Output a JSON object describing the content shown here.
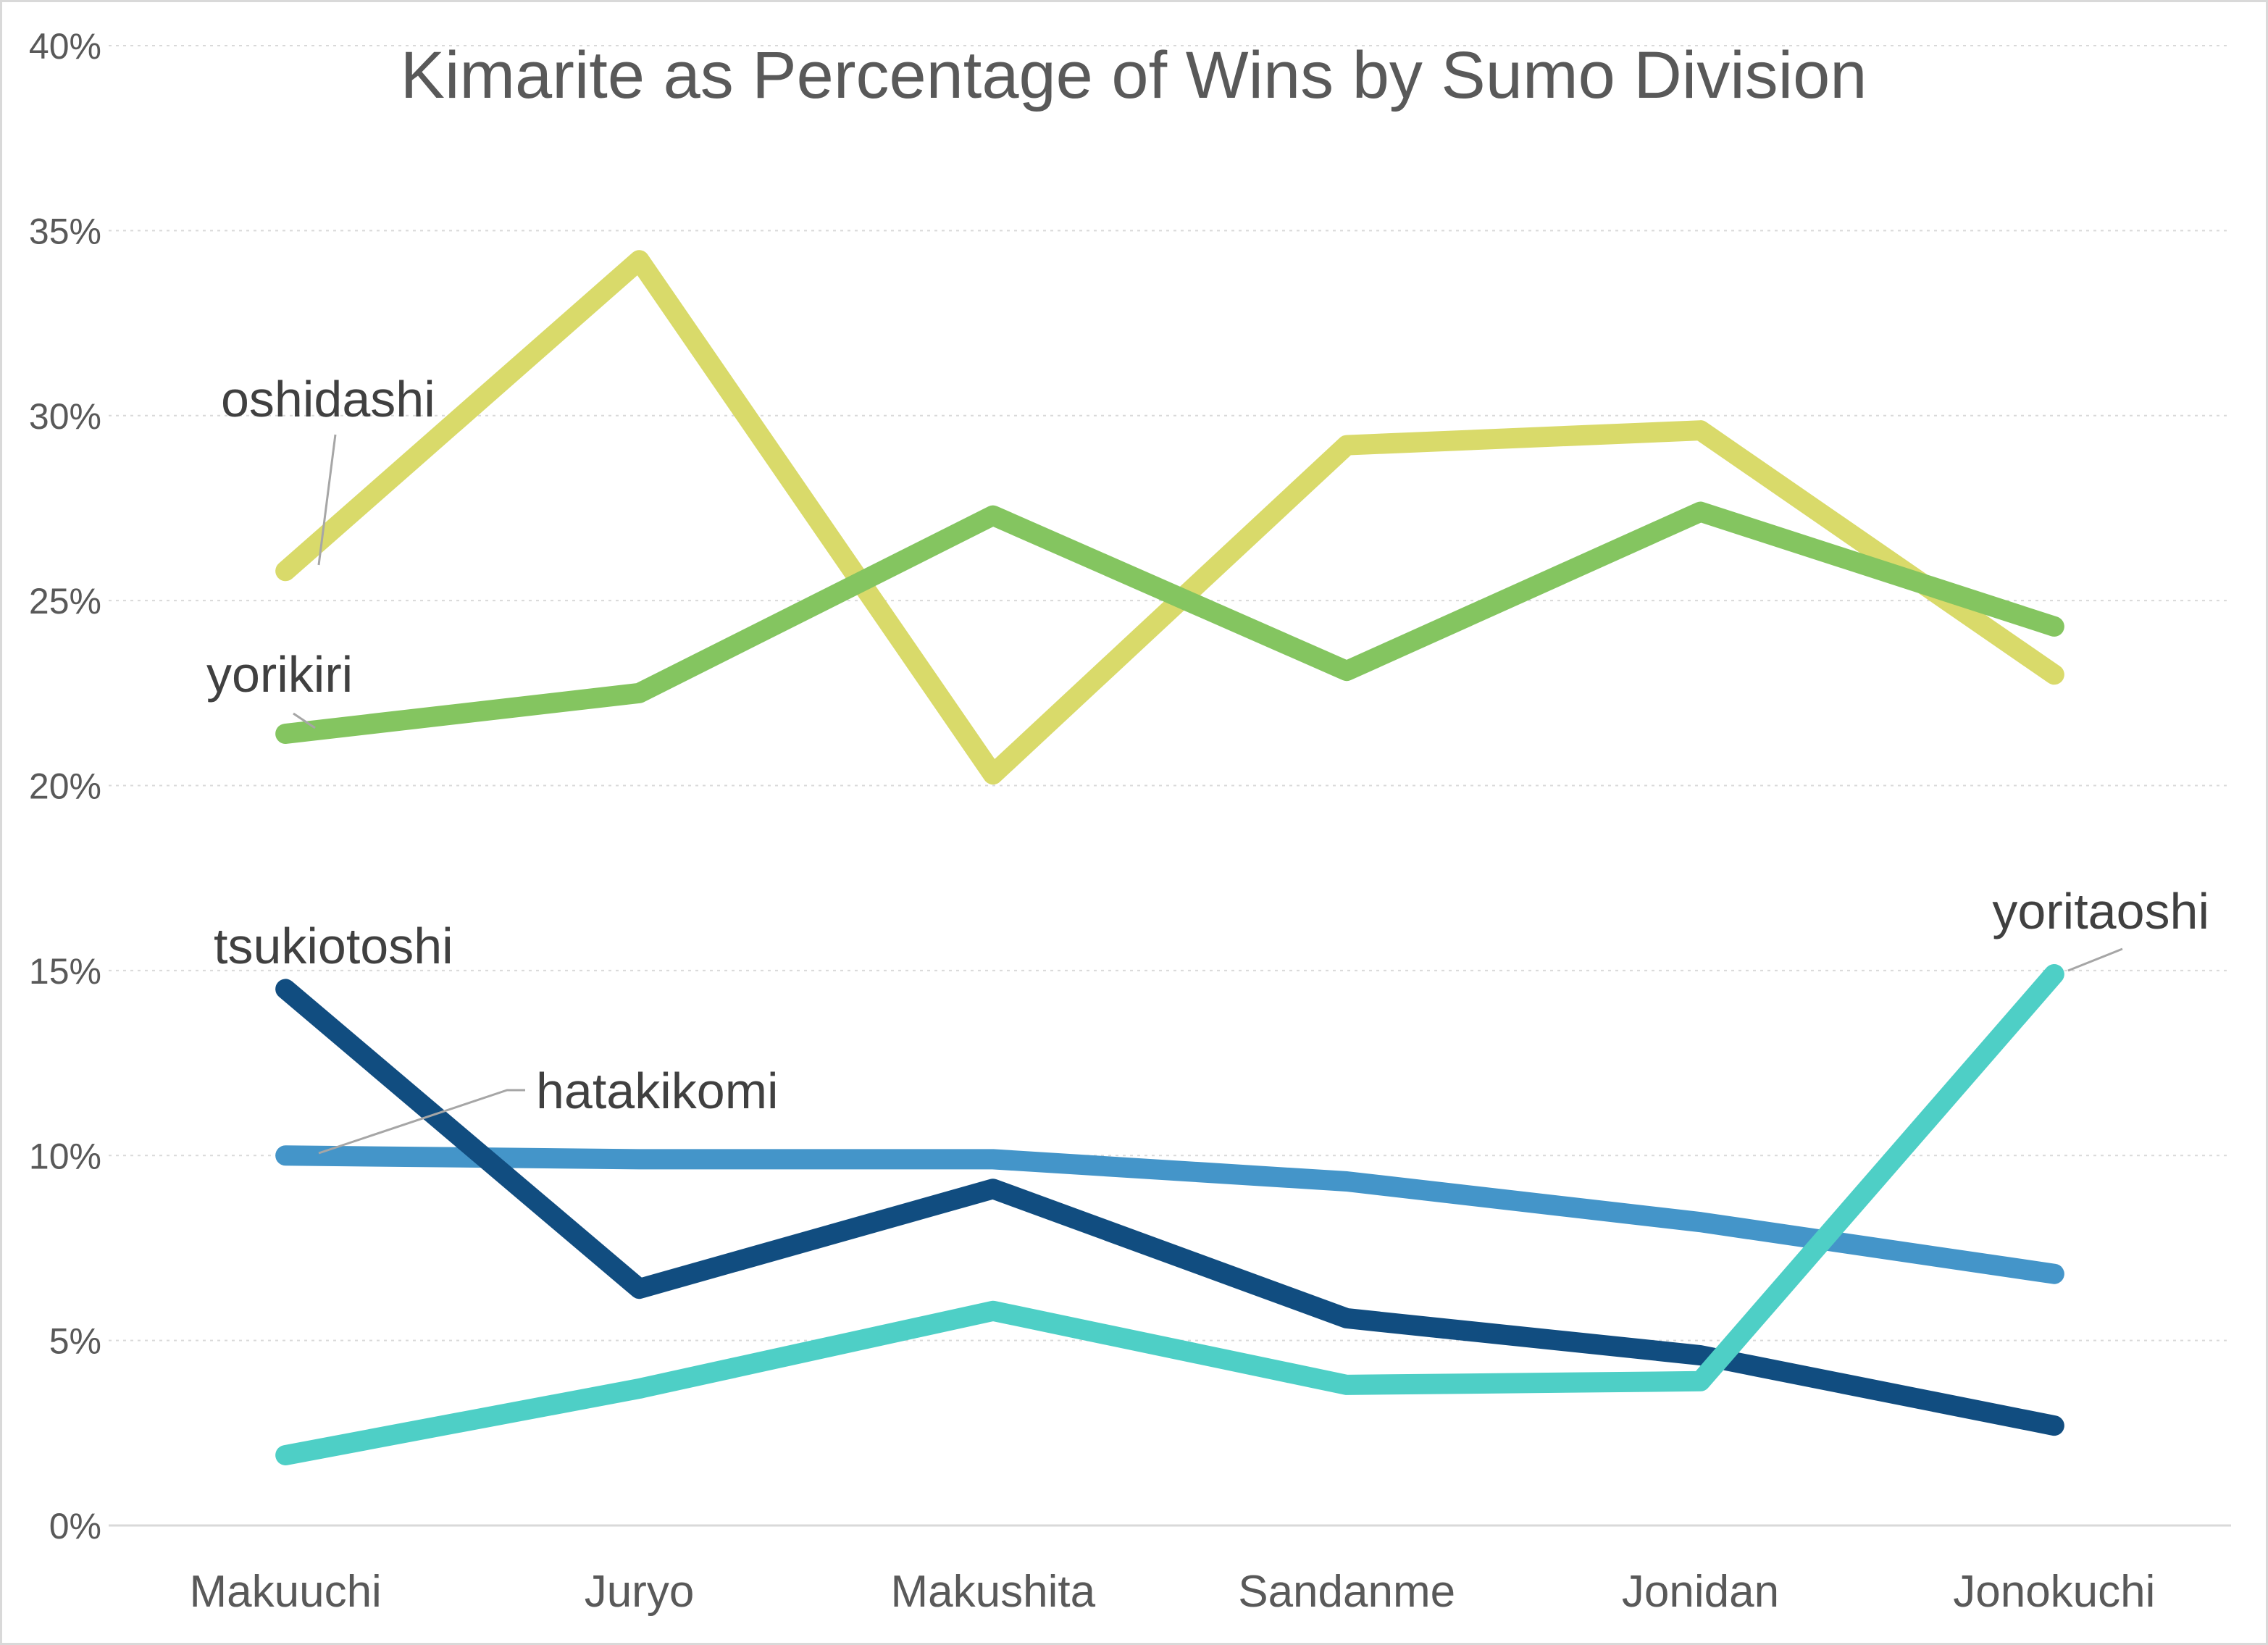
{
  "chart_data": {
    "type": "line",
    "title": "Kimarite as Percentage of Wins by Sumo Division",
    "categories": [
      "Makuuchi",
      "Juryo",
      "Makushita",
      "Sandanme",
      "Jonidan",
      "Jonokuchi"
    ],
    "y_ticks": [
      "0%",
      "5%",
      "10%",
      "15%",
      "20%",
      "25%",
      "30%",
      "35%",
      "40%"
    ],
    "ylim": [
      0,
      40
    ],
    "grid": true,
    "legend": "none",
    "series": [
      {
        "name": "oshidashi",
        "color": "#d9da6a",
        "values": [
          25.8,
          34.2,
          20.3,
          29.2,
          29.6,
          23.0
        ]
      },
      {
        "name": "yorikiri",
        "color": "#84c560",
        "values": [
          21.4,
          22.5,
          27.3,
          23.1,
          27.4,
          24.3
        ]
      },
      {
        "name": "hatakikomi",
        "color": "#4495c9",
        "values": [
          10.0,
          9.9,
          9.9,
          9.3,
          8.2,
          6.8
        ]
      },
      {
        "name": "tsukiotoshi",
        "color": "#114d80",
        "values": [
          14.5,
          6.4,
          9.1,
          5.6,
          4.6,
          2.7
        ]
      },
      {
        "name": "yoritaoshi",
        "color": "#4ecfc6",
        "values": [
          1.9,
          3.7,
          5.8,
          3.8,
          3.9,
          14.9
        ]
      }
    ]
  }
}
